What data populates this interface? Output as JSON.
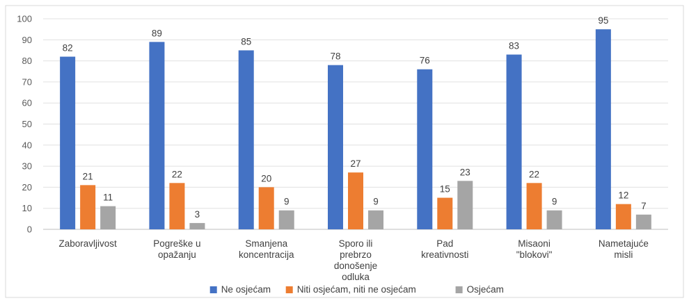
{
  "chart_data": {
    "type": "bar",
    "categories": [
      [
        "Zaboravljivost"
      ],
      [
        "Pogreške u",
        "opažanju"
      ],
      [
        "Smanjena",
        "koncentracija"
      ],
      [
        "Sporo ili",
        "prebrzo",
        "donošenje",
        "odluka"
      ],
      [
        "Pad",
        "kreativnosti"
      ],
      [
        "Misaoni",
        "\"blokovi\""
      ],
      [
        "Nametajuće",
        "misli"
      ]
    ],
    "series": [
      {
        "name": "Ne osjećam",
        "values": [
          82,
          89,
          85,
          78,
          76,
          83,
          95
        ],
        "color": "#4472C4"
      },
      {
        "name": "Niti osjećam, niti ne osjećam",
        "values": [
          21,
          22,
          20,
          27,
          15,
          22,
          12
        ],
        "color": "#ED7D31"
      },
      {
        "name": "Osjećam",
        "values": [
          11,
          3,
          9,
          9,
          23,
          9,
          7
        ],
        "color": "#A5A5A5"
      }
    ],
    "yticks": [
      0,
      10,
      20,
      30,
      40,
      50,
      60,
      70,
      80,
      90,
      100
    ],
    "ylim": [
      0,
      100
    ],
    "grid": true,
    "legend_position": "bottom",
    "data_labels": true
  }
}
